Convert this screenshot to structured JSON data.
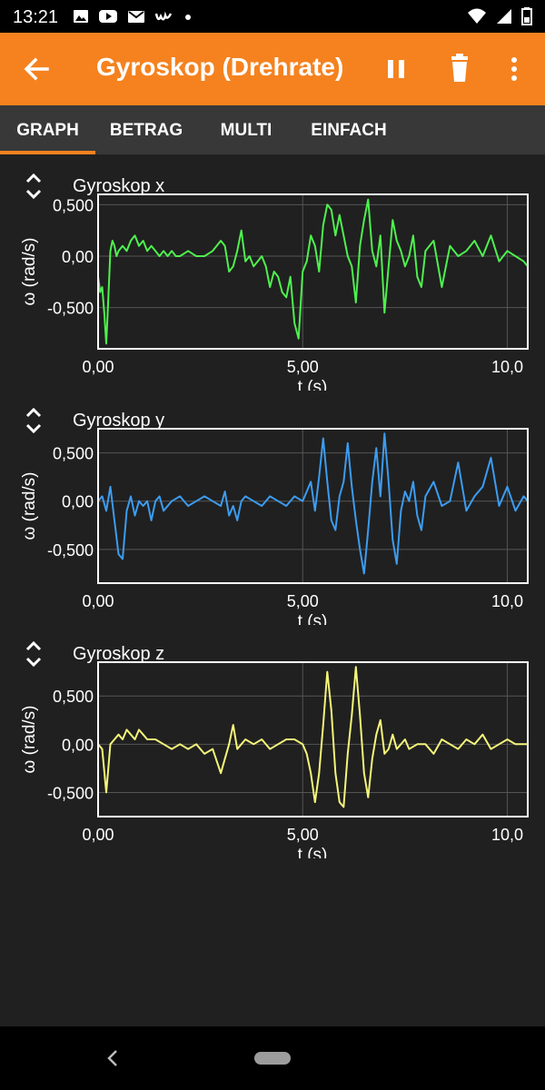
{
  "status_bar": {
    "time": "13:21",
    "left_icons": [
      "image-icon",
      "youtube-icon",
      "mail-icon",
      "w-app-icon",
      "dot-icon"
    ],
    "right_icons": [
      "wifi-icon",
      "signal-icon",
      "battery-icon"
    ]
  },
  "app_bar": {
    "title": "Gyroskop (Drehrate)",
    "back_icon": "arrow-back-icon",
    "pause_icon": "pause-icon",
    "delete_icon": "trash-icon",
    "menu_icon": "more-vert-icon"
  },
  "tabs": [
    {
      "label": "GRAPH",
      "active": true
    },
    {
      "label": "BETRAG",
      "active": false
    },
    {
      "label": "MULTI",
      "active": false
    },
    {
      "label": "EINFACH",
      "active": false
    }
  ],
  "colors": {
    "accent": "#f5821f",
    "x_line": "#4ef04e",
    "y_line": "#3c9cf0",
    "z_line": "#f5f57a"
  },
  "chart_data": [
    {
      "type": "line",
      "title": "Gyroskop x",
      "xlabel": "t (s)",
      "ylabel": "ω (rad/s)",
      "x_ticks": [
        "0,00",
        "5,00",
        "10,0"
      ],
      "y_ticks": [
        "0,500",
        "0,00",
        "-0,500"
      ],
      "xlim": [
        0,
        10.5
      ],
      "ylim": [
        -0.9,
        0.6
      ],
      "grid": true,
      "series": [
        {
          "color": "#4ef04e",
          "x": [
            0,
            0.05,
            0.1,
            0.15,
            0.2,
            0.25,
            0.3,
            0.35,
            0.4,
            0.45,
            0.5,
            0.6,
            0.7,
            0.8,
            0.9,
            1.0,
            1.1,
            1.2,
            1.3,
            1.4,
            1.5,
            1.6,
            1.7,
            1.8,
            1.9,
            2.0,
            2.2,
            2.4,
            2.6,
            2.8,
            3.0,
            3.1,
            3.2,
            3.3,
            3.4,
            3.5,
            3.6,
            3.7,
            3.8,
            3.9,
            4.0,
            4.1,
            4.2,
            4.3,
            4.4,
            4.5,
            4.6,
            4.7,
            4.8,
            4.9,
            5.0,
            5.1,
            5.2,
            5.3,
            5.4,
            5.5,
            5.6,
            5.7,
            5.8,
            5.9,
            6.0,
            6.1,
            6.2,
            6.3,
            6.4,
            6.5,
            6.6,
            6.7,
            6.8,
            6.9,
            7.0,
            7.1,
            7.2,
            7.3,
            7.4,
            7.5,
            7.6,
            7.7,
            7.8,
            7.9,
            8.0,
            8.2,
            8.4,
            8.6,
            8.8,
            9.0,
            9.2,
            9.4,
            9.6,
            9.8,
            10.0,
            10.2,
            10.4,
            10.5
          ],
          "y": [
            -0.2,
            -0.35,
            -0.3,
            -0.55,
            -0.85,
            -0.4,
            0.05,
            0.15,
            0.1,
            0.0,
            0.05,
            0.1,
            0.05,
            0.15,
            0.2,
            0.1,
            0.15,
            0.05,
            0.1,
            0.05,
            0.0,
            0.05,
            0.0,
            0.05,
            0.0,
            0.0,
            0.05,
            0.0,
            0.0,
            0.05,
            0.15,
            0.1,
            -0.15,
            -0.1,
            0.05,
            0.25,
            -0.05,
            0.0,
            -0.1,
            -0.05,
            0.0,
            -0.1,
            -0.3,
            -0.15,
            -0.2,
            -0.35,
            -0.4,
            -0.2,
            -0.65,
            -0.8,
            -0.15,
            -0.05,
            0.2,
            0.1,
            -0.15,
            0.3,
            0.5,
            0.45,
            0.2,
            0.4,
            0.2,
            0.0,
            -0.1,
            -0.45,
            0.1,
            0.35,
            0.55,
            0.05,
            -0.1,
            0.2,
            -0.55,
            -0.1,
            0.35,
            0.15,
            0.05,
            -0.1,
            0.0,
            0.2,
            -0.2,
            -0.3,
            0.05,
            0.15,
            -0.3,
            0.1,
            0.0,
            0.05,
            0.15,
            0.0,
            0.2,
            -0.05,
            0.05,
            0.0,
            -0.05,
            -0.1
          ]
        }
      ]
    },
    {
      "type": "line",
      "title": "Gyroskop y",
      "xlabel": "t (s)",
      "ylabel": "ω (rad/s)",
      "x_ticks": [
        "0,00",
        "5,00",
        "10,0"
      ],
      "y_ticks": [
        "0,500",
        "0,00",
        "-0,500"
      ],
      "xlim": [
        0,
        10.5
      ],
      "ylim": [
        -0.85,
        0.75
      ],
      "grid": true,
      "series": [
        {
          "color": "#3c9cf0",
          "x": [
            0,
            0.1,
            0.2,
            0.3,
            0.4,
            0.5,
            0.6,
            0.7,
            0.8,
            0.9,
            1.0,
            1.1,
            1.2,
            1.3,
            1.4,
            1.5,
            1.6,
            1.8,
            2.0,
            2.2,
            2.4,
            2.6,
            2.8,
            3.0,
            3.1,
            3.2,
            3.3,
            3.4,
            3.5,
            3.6,
            3.8,
            4.0,
            4.2,
            4.4,
            4.6,
            4.8,
            5.0,
            5.1,
            5.2,
            5.3,
            5.4,
            5.5,
            5.6,
            5.7,
            5.8,
            5.9,
            6.0,
            6.1,
            6.2,
            6.3,
            6.4,
            6.5,
            6.6,
            6.7,
            6.8,
            6.9,
            7.0,
            7.1,
            7.2,
            7.3,
            7.4,
            7.5,
            7.6,
            7.7,
            7.8,
            7.9,
            8.0,
            8.2,
            8.4,
            8.6,
            8.8,
            9.0,
            9.2,
            9.4,
            9.6,
            9.8,
            10.0,
            10.2,
            10.4,
            10.5
          ],
          "y": [
            0.0,
            0.05,
            -0.1,
            0.15,
            -0.2,
            -0.55,
            -0.6,
            -0.1,
            0.05,
            -0.15,
            0.0,
            -0.05,
            0.0,
            -0.2,
            0.0,
            0.05,
            -0.1,
            0.0,
            0.05,
            -0.05,
            0.0,
            0.05,
            0.0,
            -0.05,
            0.1,
            -0.15,
            -0.05,
            -0.2,
            0.0,
            0.05,
            0.0,
            -0.05,
            0.05,
            0.0,
            -0.05,
            0.05,
            0.0,
            0.1,
            0.2,
            -0.1,
            0.25,
            0.65,
            0.2,
            -0.2,
            -0.3,
            0.05,
            0.2,
            0.6,
            0.15,
            -0.2,
            -0.5,
            -0.75,
            -0.3,
            0.2,
            0.55,
            0.05,
            0.7,
            0.2,
            -0.4,
            -0.65,
            -0.1,
            0.1,
            0.0,
            0.2,
            -0.15,
            -0.3,
            0.05,
            0.2,
            -0.05,
            0.0,
            0.4,
            -0.1,
            0.05,
            0.15,
            0.45,
            -0.05,
            0.15,
            -0.1,
            0.05,
            0.0
          ]
        }
      ]
    },
    {
      "type": "line",
      "title": "Gyroskop z",
      "xlabel": "t (s)",
      "ylabel": "ω (rad/s)",
      "x_ticks": [
        "0,00",
        "5,00",
        "10,0"
      ],
      "y_ticks": [
        "0,500",
        "0,00",
        "-0,500"
      ],
      "xlim": [
        0,
        10.5
      ],
      "ylim": [
        -0.75,
        0.85
      ],
      "grid": true,
      "series": [
        {
          "color": "#f5f57a",
          "x": [
            0,
            0.1,
            0.2,
            0.3,
            0.4,
            0.5,
            0.6,
            0.7,
            0.8,
            0.9,
            1.0,
            1.1,
            1.2,
            1.4,
            1.6,
            1.8,
            2.0,
            2.2,
            2.4,
            2.6,
            2.8,
            3.0,
            3.1,
            3.2,
            3.3,
            3.4,
            3.5,
            3.6,
            3.8,
            4.0,
            4.2,
            4.4,
            4.6,
            4.8,
            5.0,
            5.1,
            5.2,
            5.3,
            5.4,
            5.5,
            5.6,
            5.7,
            5.8,
            5.9,
            6.0,
            6.1,
            6.2,
            6.3,
            6.4,
            6.5,
            6.6,
            6.7,
            6.8,
            6.9,
            7.0,
            7.1,
            7.2,
            7.3,
            7.4,
            7.5,
            7.6,
            7.8,
            8.0,
            8.2,
            8.4,
            8.6,
            8.8,
            9.0,
            9.2,
            9.4,
            9.6,
            9.8,
            10.0,
            10.2,
            10.4,
            10.5
          ],
          "y": [
            0.0,
            -0.05,
            -0.5,
            0.0,
            0.05,
            0.1,
            0.05,
            0.15,
            0.1,
            0.05,
            0.15,
            0.1,
            0.05,
            0.05,
            0.0,
            -0.05,
            0.0,
            -0.05,
            0.0,
            -0.1,
            -0.05,
            -0.3,
            -0.15,
            0.0,
            0.2,
            -0.05,
            0.0,
            0.05,
            0.0,
            0.05,
            -0.05,
            0.0,
            0.05,
            0.05,
            0.0,
            -0.1,
            -0.3,
            -0.6,
            -0.3,
            0.2,
            0.75,
            0.35,
            -0.3,
            -0.6,
            -0.65,
            -0.1,
            0.3,
            0.8,
            0.3,
            -0.3,
            -0.55,
            -0.15,
            0.1,
            0.25,
            -0.1,
            -0.05,
            0.1,
            -0.05,
            0.0,
            0.05,
            -0.05,
            0.0,
            0.0,
            -0.1,
            0.05,
            0.0,
            -0.05,
            0.05,
            0.0,
            0.1,
            -0.05,
            0.0,
            0.05,
            0.0,
            0.0,
            0.0
          ]
        }
      ]
    }
  ],
  "nav_bar": {
    "back_icon": "nav-back-icon",
    "home_icon": "nav-home-pill"
  }
}
